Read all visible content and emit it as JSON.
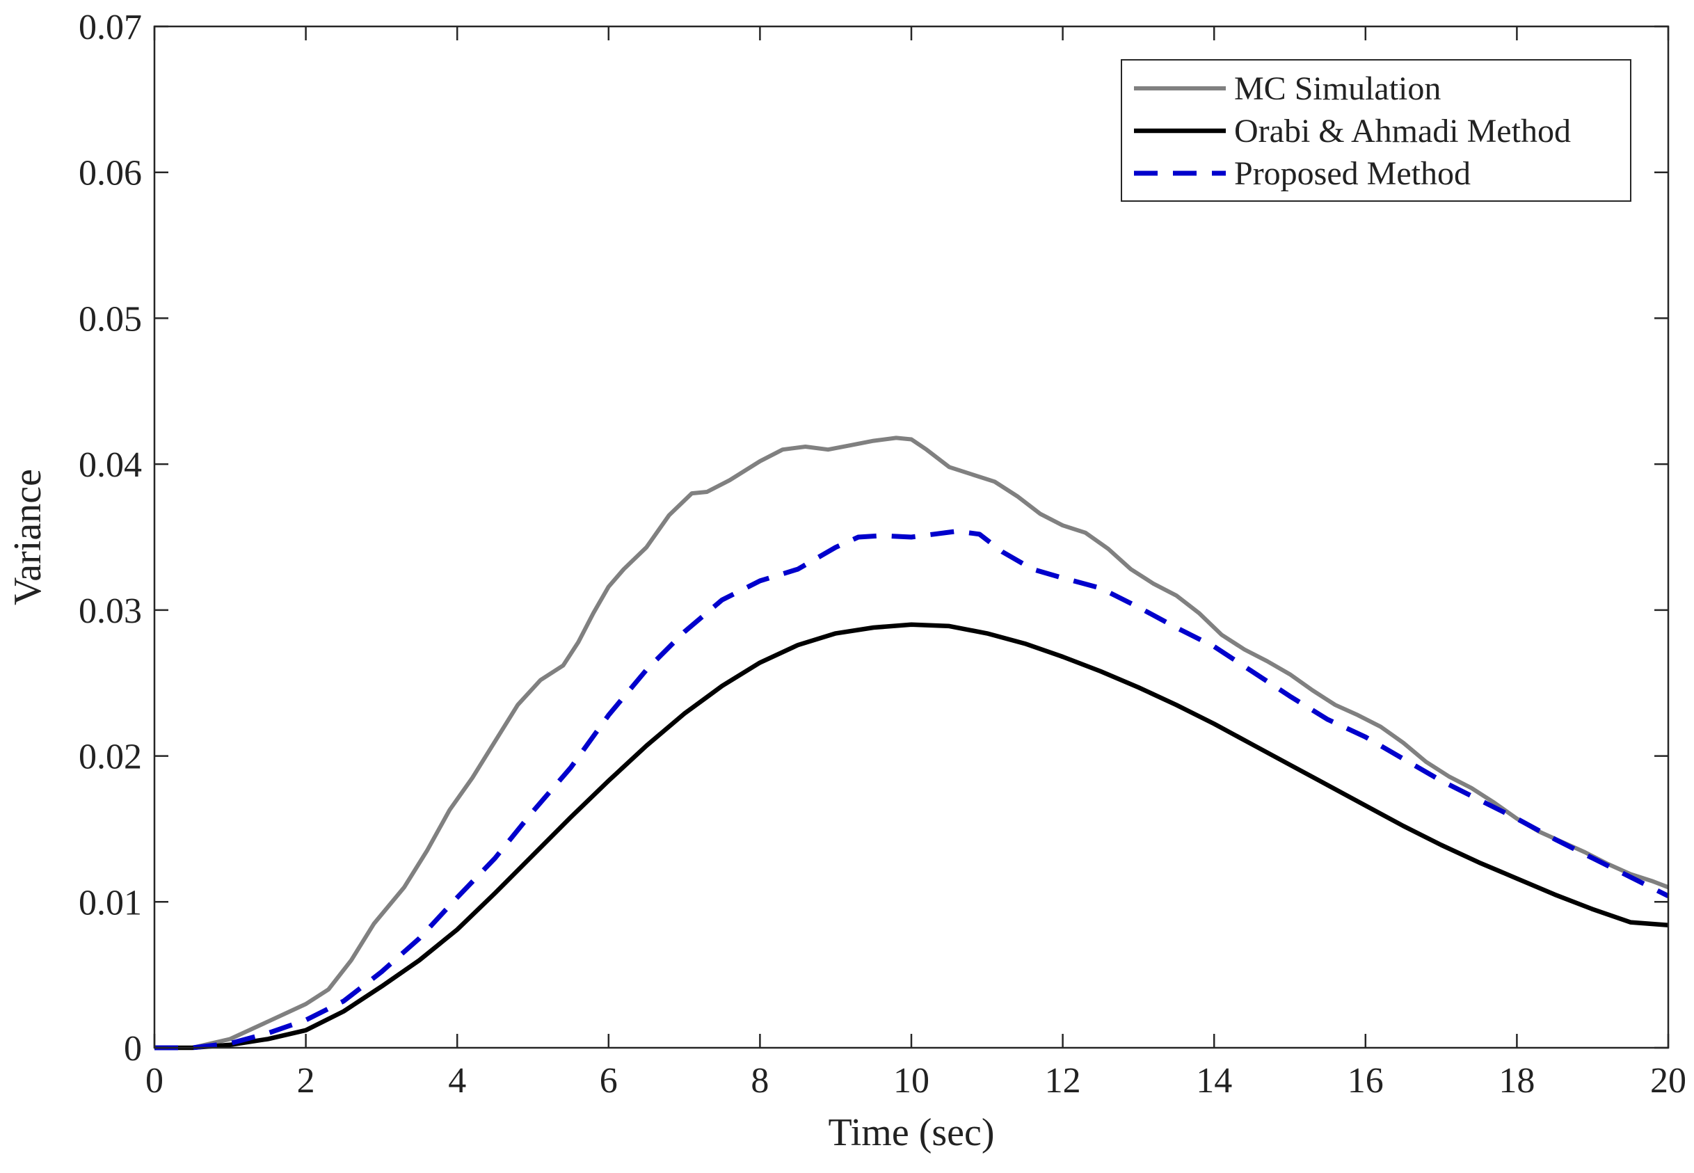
{
  "chart_data": {
    "type": "line",
    "title": "",
    "xlabel": "Time (sec)",
    "ylabel": "Variance",
    "xlim": [
      0,
      20
    ],
    "ylim": [
      0,
      0.07
    ],
    "xticks": [
      0,
      2,
      4,
      6,
      8,
      10,
      12,
      14,
      16,
      18,
      20
    ],
    "xtick_labels": [
      "0",
      "2",
      "4",
      "6",
      "8",
      "10",
      "12",
      "14",
      "16",
      "18",
      "20"
    ],
    "yticks": [
      0,
      0.01,
      0.02,
      0.03,
      0.04,
      0.05,
      0.06,
      0.07
    ],
    "ytick_labels": [
      "0",
      "0.01",
      "0.02",
      "0.03",
      "0.04",
      "0.05",
      "0.06",
      "0.07"
    ],
    "grid": false,
    "legend_position": "top-right",
    "series": [
      {
        "name": "MC Simulation",
        "color": "#808080",
        "style": "solid",
        "x": [
          0,
          0.5,
          1,
          1.5,
          2,
          2.3,
          2.6,
          2.9,
          3.3,
          3.6,
          3.9,
          4.2,
          4.5,
          4.8,
          5.1,
          5.4,
          5.6,
          5.8,
          6.0,
          6.2,
          6.5,
          6.8,
          7.1,
          7.3,
          7.6,
          8.0,
          8.3,
          8.6,
          8.9,
          9.2,
          9.5,
          9.8,
          10.0,
          10.2,
          10.5,
          10.8,
          11.1,
          11.4,
          11.7,
          12.0,
          12.3,
          12.6,
          12.9,
          13.2,
          13.5,
          13.8,
          14.1,
          14.4,
          14.7,
          15.0,
          15.3,
          15.6,
          15.9,
          16.2,
          16.5,
          16.8,
          17.1,
          17.4,
          17.7,
          18.0,
          18.3,
          18.6,
          18.9,
          19.2,
          19.5,
          19.8,
          20.0
        ],
        "values": [
          0,
          0,
          0.0006,
          0.0018,
          0.003,
          0.004,
          0.006,
          0.0085,
          0.011,
          0.0135,
          0.0163,
          0.0185,
          0.021,
          0.0235,
          0.0252,
          0.0262,
          0.0278,
          0.0298,
          0.0316,
          0.0328,
          0.0343,
          0.0365,
          0.038,
          0.0381,
          0.0389,
          0.0402,
          0.041,
          0.0412,
          0.041,
          0.0413,
          0.0416,
          0.0418,
          0.0417,
          0.041,
          0.0398,
          0.0393,
          0.0388,
          0.0378,
          0.0366,
          0.0358,
          0.0353,
          0.0342,
          0.0328,
          0.0318,
          0.031,
          0.0298,
          0.0283,
          0.0273,
          0.0265,
          0.0256,
          0.0245,
          0.0235,
          0.0228,
          0.022,
          0.0209,
          0.0196,
          0.0186,
          0.0178,
          0.0168,
          0.0157,
          0.0148,
          0.0141,
          0.0134,
          0.0126,
          0.0119,
          0.0114,
          0.011
        ]
      },
      {
        "name": "Orabi & Ahmadi Method",
        "color": "#000000",
        "style": "solid",
        "x": [
          0,
          0.5,
          1,
          1.5,
          2,
          2.5,
          3,
          3.5,
          4,
          4.5,
          5,
          5.5,
          6,
          6.5,
          7,
          7.5,
          8,
          8.5,
          9,
          9.5,
          10,
          10.5,
          11,
          11.5,
          12,
          12.5,
          13,
          13.5,
          14,
          14.5,
          15,
          15.5,
          16,
          16.5,
          17,
          17.5,
          18,
          18.5,
          19,
          19.5,
          20
        ],
        "values": [
          0,
          0,
          0.0002,
          0.0006,
          0.0012,
          0.0025,
          0.0042,
          0.006,
          0.0081,
          0.0106,
          0.0132,
          0.0158,
          0.0183,
          0.0207,
          0.0229,
          0.0248,
          0.0264,
          0.0276,
          0.0284,
          0.0288,
          0.029,
          0.0289,
          0.0284,
          0.0277,
          0.0268,
          0.0258,
          0.0247,
          0.0235,
          0.0222,
          0.0208,
          0.0194,
          0.018,
          0.0166,
          0.0152,
          0.0139,
          0.0127,
          0.0116,
          0.0105,
          0.0095,
          0.0086,
          0.0084
        ]
      },
      {
        "name": "Proposed Method",
        "color": "#0000CC",
        "style": "dashed",
        "x": [
          0,
          0.5,
          1,
          1.5,
          2,
          2.5,
          3,
          3.5,
          4,
          4.5,
          5,
          5.5,
          6,
          6.5,
          7,
          7.5,
          8,
          8.5,
          9,
          9.3,
          9.6,
          10.0,
          10.3,
          10.6,
          10.9,
          11.2,
          11.6,
          12.0,
          12.5,
          13.0,
          13.5,
          14.0,
          14.5,
          15.0,
          15.5,
          16.0,
          16.5,
          17.0,
          17.5,
          18.0,
          18.5,
          19.0,
          19.5,
          20.0
        ],
        "values": [
          0,
          0,
          0.0003,
          0.001,
          0.0019,
          0.0032,
          0.0052,
          0.0075,
          0.0103,
          0.013,
          0.0162,
          0.0192,
          0.0228,
          0.0259,
          0.0285,
          0.0307,
          0.032,
          0.0328,
          0.0343,
          0.035,
          0.0351,
          0.035,
          0.0352,
          0.0354,
          0.0352,
          0.034,
          0.0328,
          0.0322,
          0.0315,
          0.0302,
          0.0288,
          0.0275,
          0.0258,
          0.0241,
          0.0225,
          0.0213,
          0.0198,
          0.0183,
          0.017,
          0.0157,
          0.0143,
          0.013,
          0.0117,
          0.0104
        ]
      }
    ]
  }
}
